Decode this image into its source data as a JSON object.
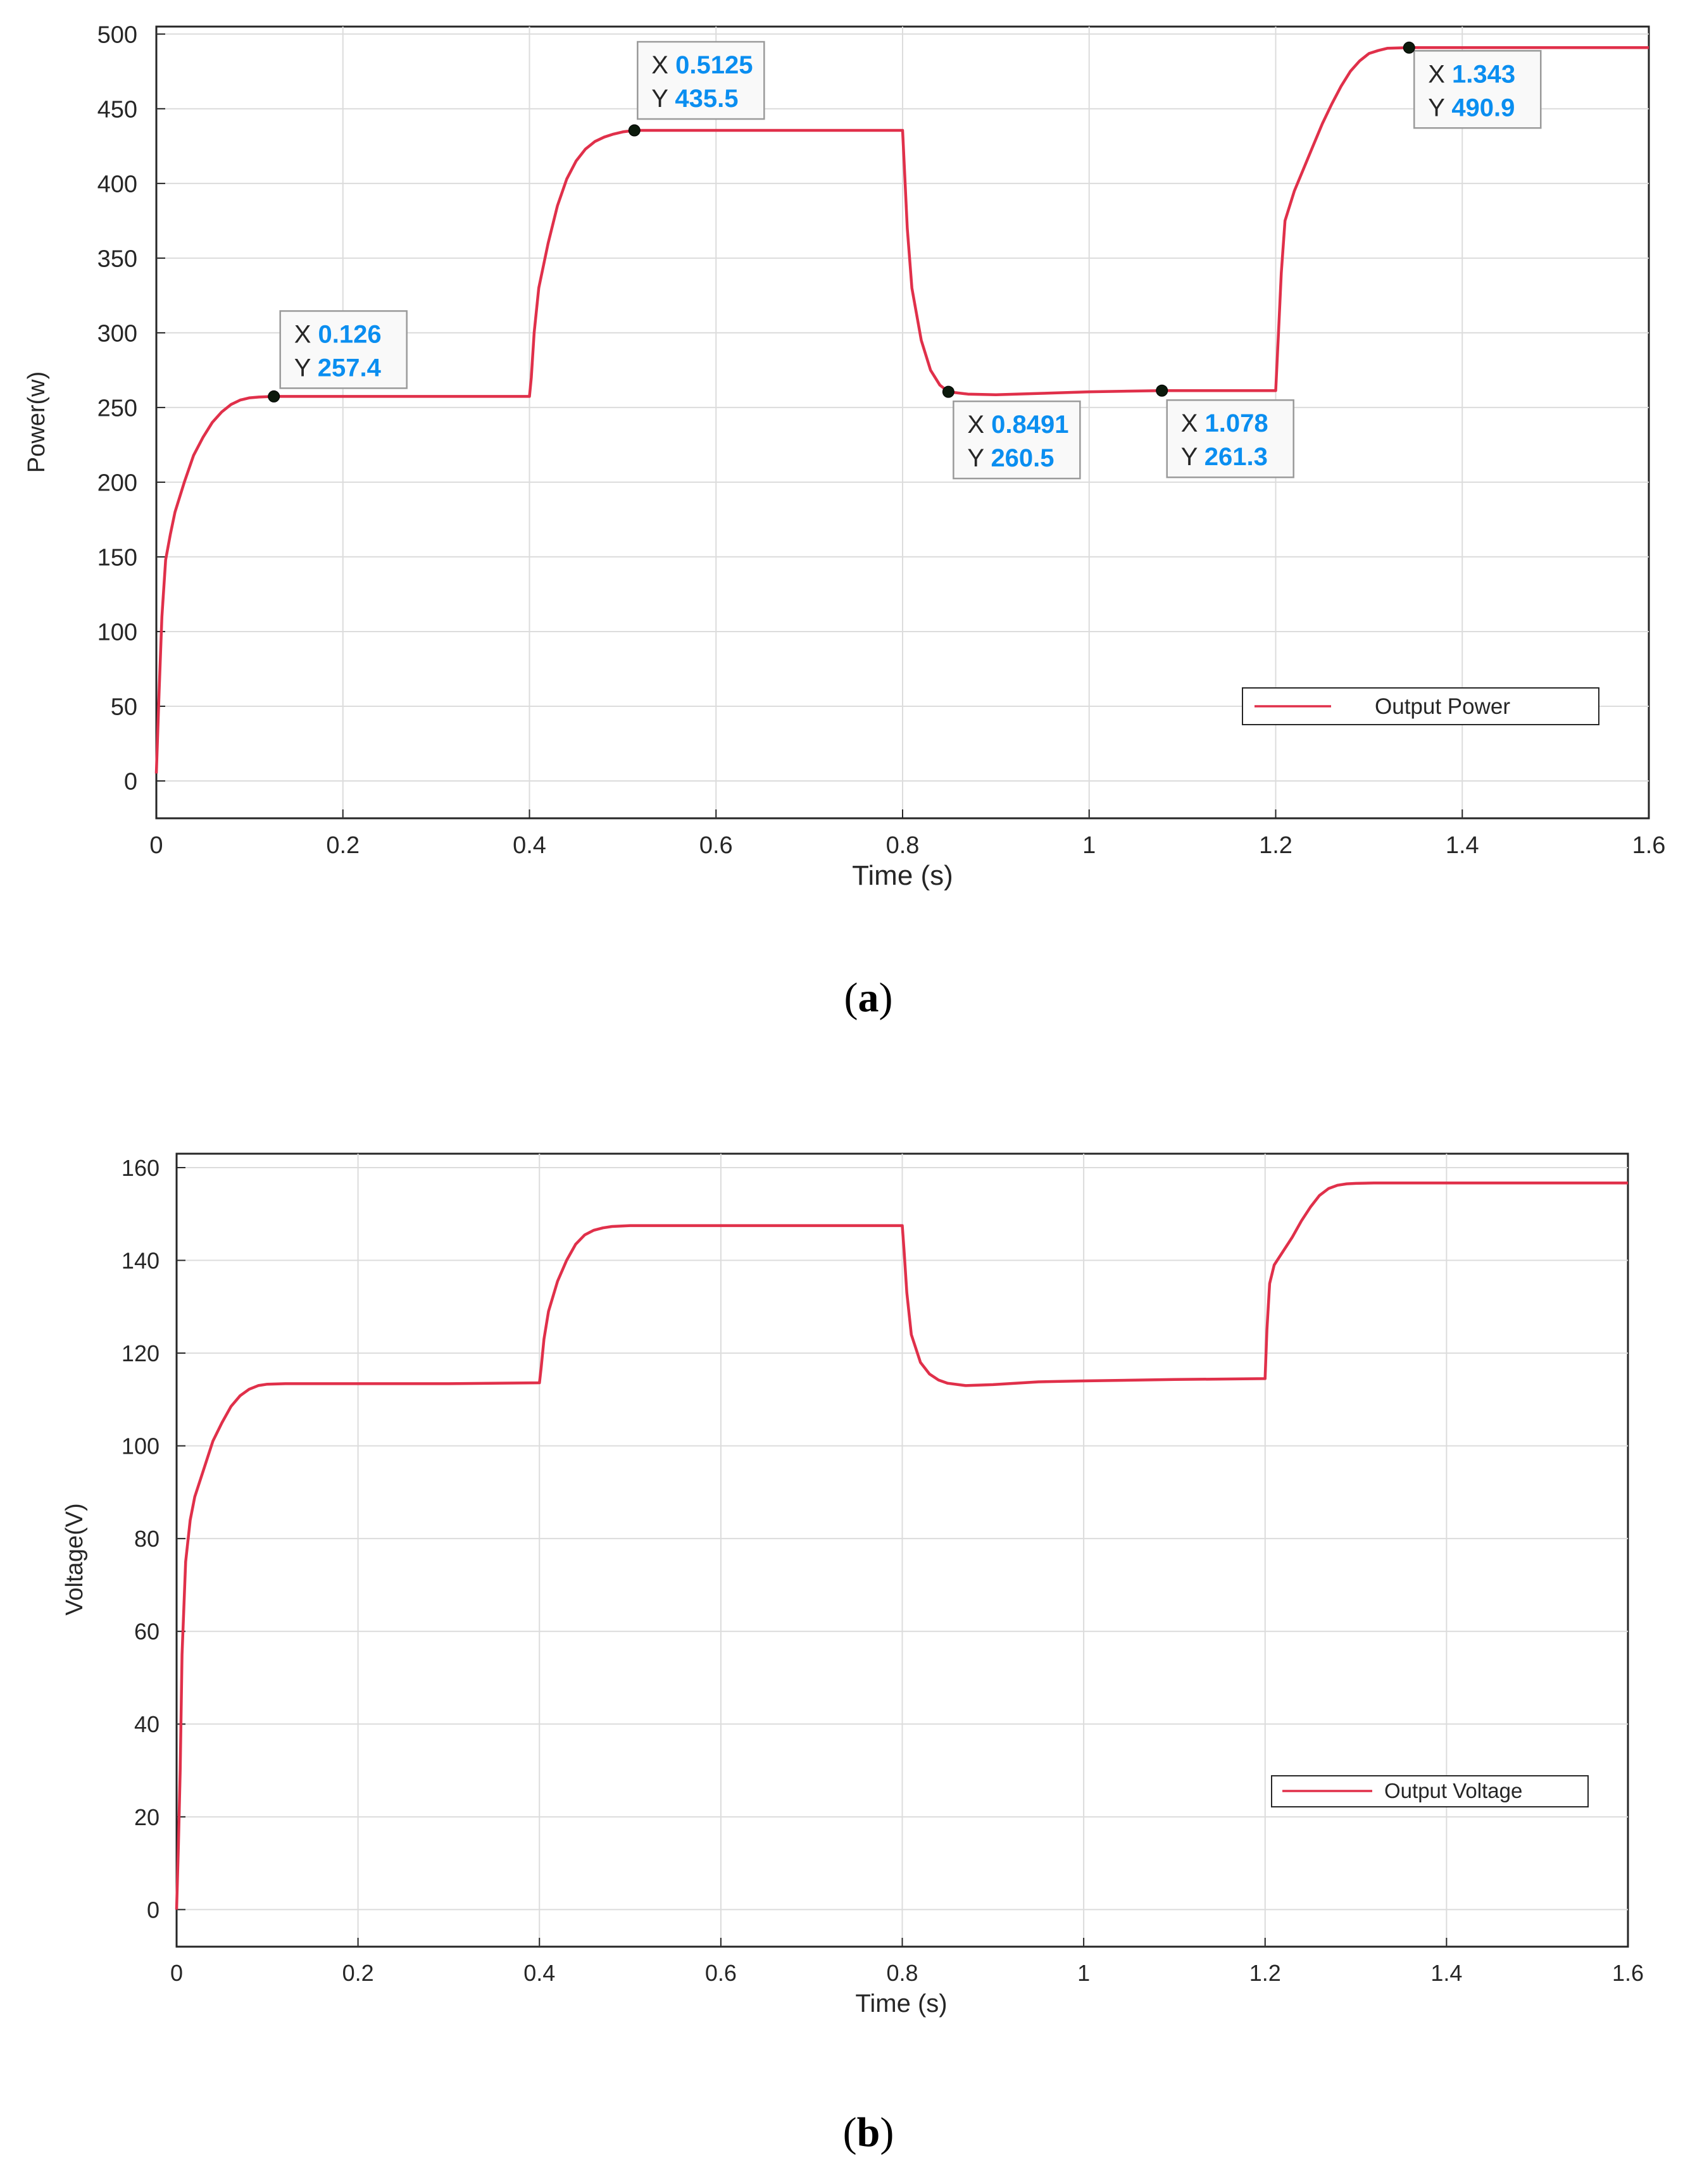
{
  "chart_data": [
    {
      "type": "line",
      "panel_label": "a",
      "xlabel": "Time (s)",
      "ylabel": "Power(w)",
      "xlim": [
        0,
        1.6
      ],
      "ylim": [
        -25,
        505
      ],
      "xticks": [
        0,
        0.2,
        0.4,
        0.6,
        0.8,
        1,
        1.2,
        1.4,
        1.6
      ],
      "xtick_labels": [
        "0",
        "0.2",
        "0.4",
        "0.6",
        "0.8",
        "1",
        "1.2",
        "1.4",
        "1.6"
      ],
      "yticks": [
        0,
        50,
        100,
        150,
        200,
        250,
        300,
        350,
        400,
        450,
        500
      ],
      "ytick_labels": [
        "0",
        "50",
        "100",
        "150",
        "200",
        "250",
        "300",
        "350",
        "400",
        "450",
        "500"
      ],
      "grid": true,
      "legend": {
        "placement": "bottom-right",
        "entries": [
          "Output Power"
        ]
      },
      "series": [
        {
          "name": "Output Power",
          "color": "#e0304a",
          "x": [
            0,
            0.003,
            0.006,
            0.01,
            0.015,
            0.02,
            0.03,
            0.04,
            0.05,
            0.06,
            0.07,
            0.08,
            0.09,
            0.1,
            0.11,
            0.12,
            0.126,
            0.2,
            0.3,
            0.4,
            0.402,
            0.405,
            0.41,
            0.42,
            0.43,
            0.44,
            0.45,
            0.46,
            0.47,
            0.48,
            0.49,
            0.5,
            0.5125,
            0.6,
            0.7,
            0.8,
            0.802,
            0.805,
            0.81,
            0.82,
            0.83,
            0.84,
            0.8491,
            0.87,
            0.9,
            0.95,
            1.0,
            1.05,
            1.078,
            1.1,
            1.15,
            1.2,
            1.203,
            1.206,
            1.21,
            1.22,
            1.23,
            1.24,
            1.25,
            1.26,
            1.27,
            1.28,
            1.29,
            1.3,
            1.31,
            1.32,
            1.343,
            1.4,
            1.5,
            1.6
          ],
          "y": [
            5,
            60,
            110,
            148,
            165,
            180,
            200,
            218,
            230,
            240,
            247,
            252,
            255,
            256.5,
            257,
            257.3,
            257.4,
            257.4,
            257.4,
            257.4,
            270,
            300,
            330,
            360,
            385,
            403,
            415,
            423,
            428,
            431,
            433,
            434.5,
            435.5,
            435.5,
            435.5,
            435.5,
            410,
            370,
            330,
            295,
            275,
            265,
            260.5,
            259,
            258.5,
            259.5,
            260.5,
            261,
            261.3,
            261.3,
            261.3,
            261.3,
            300,
            340,
            375,
            395,
            410,
            425,
            440,
            453,
            465,
            475,
            482,
            487,
            489,
            490.5,
            490.9,
            490.9,
            490.9,
            490.9
          ]
        }
      ],
      "annotations": [
        {
          "x_label": "X",
          "y_label": "Y",
          "x": 0.126,
          "y": 257.4,
          "x_text": "0.126",
          "y_text": "257.4"
        },
        {
          "x_label": "X",
          "y_label": "Y",
          "x": 0.5125,
          "y": 435.5,
          "x_text": "0.5125",
          "y_text": "435.5"
        },
        {
          "x_label": "X",
          "y_label": "Y",
          "x": 0.8491,
          "y": 260.5,
          "x_text": "0.8491",
          "y_text": "260.5"
        },
        {
          "x_label": "X",
          "y_label": "Y",
          "x": 1.078,
          "y": 261.3,
          "x_text": "1.078",
          "y_text": "261.3"
        },
        {
          "x_label": "X",
          "y_label": "Y",
          "x": 1.343,
          "y": 490.9,
          "x_text": "1.343",
          "y_text": "490.9"
        }
      ]
    },
    {
      "type": "line",
      "panel_label": "b",
      "xlabel": "Time (s)",
      "ylabel": "Voltage(V)",
      "xlim": [
        0,
        1.6
      ],
      "ylim": [
        -8,
        163
      ],
      "xticks": [
        0,
        0.2,
        0.4,
        0.6,
        0.8,
        1,
        1.2,
        1.4,
        1.6
      ],
      "xtick_labels": [
        "0",
        "0.2",
        "0.4",
        "0.6",
        "0.8",
        "1",
        "1.2",
        "1.4",
        "1.6"
      ],
      "yticks": [
        0,
        20,
        40,
        60,
        80,
        100,
        120,
        140,
        160
      ],
      "ytick_labels": [
        "0",
        "20",
        "40",
        "60",
        "80",
        "100",
        "120",
        "140",
        "160"
      ],
      "grid": true,
      "legend": {
        "placement": "bottom-right",
        "entries": [
          "Output Voltage"
        ]
      },
      "series": [
        {
          "name": "Output Voltage",
          "color": "#e0304a",
          "x": [
            0,
            0.002,
            0.004,
            0.006,
            0.01,
            0.015,
            0.02,
            0.03,
            0.04,
            0.05,
            0.06,
            0.07,
            0.08,
            0.09,
            0.1,
            0.12,
            0.2,
            0.3,
            0.4,
            0.402,
            0.405,
            0.41,
            0.42,
            0.43,
            0.44,
            0.45,
            0.46,
            0.47,
            0.48,
            0.5,
            0.6,
            0.7,
            0.8,
            0.802,
            0.805,
            0.81,
            0.82,
            0.83,
            0.84,
            0.85,
            0.87,
            0.9,
            0.95,
            1.0,
            1.1,
            1.2,
            1.202,
            1.205,
            1.21,
            1.22,
            1.23,
            1.24,
            1.25,
            1.26,
            1.27,
            1.28,
            1.29,
            1.3,
            1.32,
            1.35,
            1.4,
            1.5,
            1.6
          ],
          "y": [
            0,
            14,
            30,
            55,
            75,
            84,
            89,
            95,
            101,
            105,
            108.5,
            110.8,
            112.2,
            113,
            113.3,
            113.4,
            113.4,
            113.4,
            113.6,
            117,
            123,
            129,
            135.5,
            140,
            143.5,
            145.5,
            146.5,
            147,
            147.3,
            147.5,
            147.5,
            147.5,
            147.5,
            142,
            133,
            124,
            118,
            115.5,
            114.2,
            113.5,
            113,
            113.2,
            113.8,
            114,
            114.3,
            114.5,
            125,
            135,
            139,
            142,
            145,
            148.5,
            151.5,
            154,
            155.5,
            156.2,
            156.5,
            156.6,
            156.7,
            156.7,
            156.7,
            156.7,
            156.7
          ]
        }
      ]
    }
  ],
  "captions": [
    {
      "open": "(",
      "letter": "a",
      "close": ")"
    },
    {
      "open": "(",
      "letter": "b",
      "close": ")"
    }
  ]
}
